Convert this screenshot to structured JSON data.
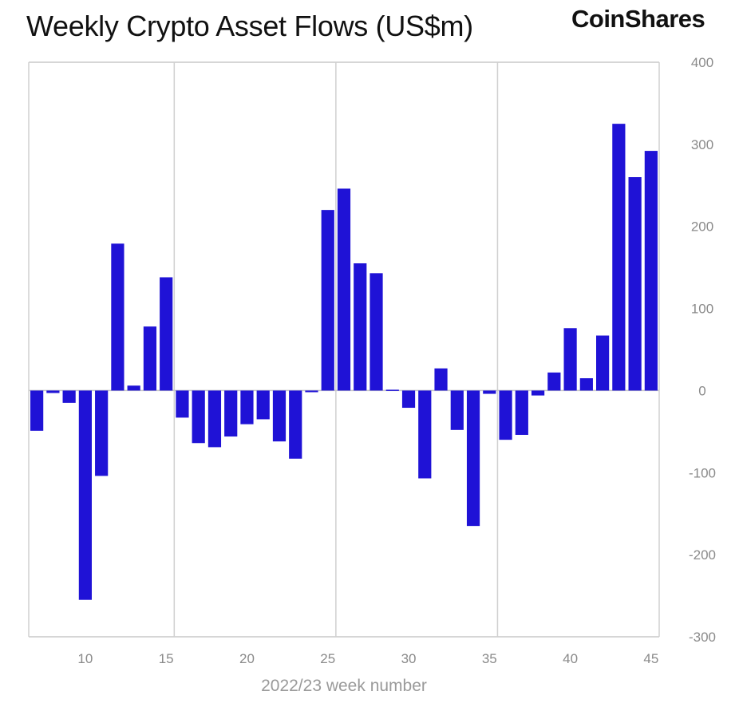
{
  "chart_data": {
    "type": "bar",
    "title": "Weekly Crypto Asset Flows (US$m)",
    "brand": "CoinShares",
    "xlabel": "2022/23 week number",
    "ylabel": "",
    "ylim": [
      -300,
      400
    ],
    "xlim": [
      6.5,
      45.5
    ],
    "yticks": [
      400,
      300,
      200,
      100,
      0,
      -100,
      -200,
      -300
    ],
    "xticks": [
      10,
      15,
      20,
      25,
      30,
      35,
      40,
      45
    ],
    "grid": "vertical lines every 10 weeks",
    "color": "#1f12d6",
    "x": [
      7,
      8,
      9,
      10,
      11,
      12,
      13,
      14,
      15,
      16,
      17,
      18,
      19,
      20,
      21,
      22,
      23,
      24,
      25,
      26,
      27,
      28,
      29,
      30,
      31,
      32,
      33,
      34,
      35,
      36,
      37,
      38,
      39,
      40,
      41,
      42,
      43,
      44,
      45
    ],
    "values": [
      -49,
      -3,
      -15,
      -255,
      -104,
      179,
      6,
      78,
      138,
      -33,
      -64,
      -69,
      -56,
      -41,
      -35,
      -62,
      -83,
      -2,
      220,
      246,
      155,
      143,
      1,
      -21,
      -107,
      27,
      -48,
      -165,
      -4,
      -60,
      -54,
      -6,
      22,
      76,
      15,
      67,
      325,
      260,
      292
    ]
  }
}
